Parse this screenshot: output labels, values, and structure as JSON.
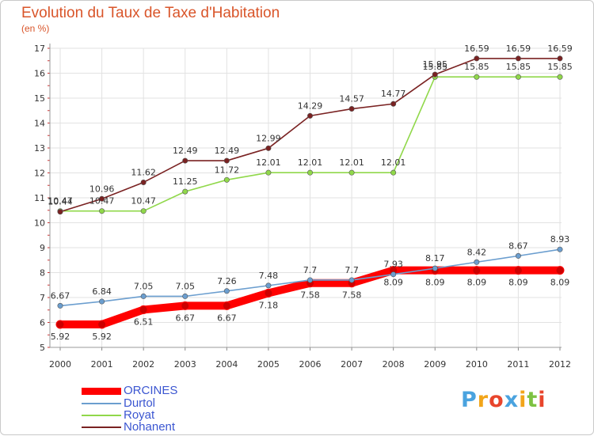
{
  "chart_data": {
    "type": "line",
    "title": "Evolution du Taux de Taxe d'Habitation",
    "ylabel": "(en %)",
    "xlabel": "",
    "x": [
      "2000",
      "2001",
      "2002",
      "2003",
      "2004",
      "2005",
      "2006",
      "2007",
      "2008",
      "2009",
      "2010",
      "2011",
      "2012"
    ],
    "ylim": [
      5,
      17
    ],
    "yticks": [
      "5",
      "6",
      "7",
      "8",
      "9",
      "10",
      "11",
      "12",
      "13",
      "14",
      "15",
      "16",
      "17"
    ],
    "grid": true,
    "legend_position": "bottom-left",
    "series": [
      {
        "name": "ORCINES",
        "color": "#ff0000",
        "values": [
          5.92,
          5.92,
          6.51,
          6.67,
          6.67,
          7.18,
          7.58,
          7.58,
          8.09,
          8.09,
          8.09,
          8.09,
          8.09
        ],
        "labels": [
          "5.92",
          "5.92",
          "6.51",
          "6.67",
          "6.67",
          "7.18",
          "7.58",
          "7.58",
          "8.09",
          "8.09",
          "8.09",
          "8.09",
          "8.09"
        ]
      },
      {
        "name": "Durtol",
        "color": "#6b9ecf",
        "values": [
          6.67,
          6.84,
          7.05,
          7.05,
          7.26,
          7.48,
          7.7,
          7.7,
          7.93,
          8.17,
          8.42,
          8.67,
          8.93
        ],
        "labels": [
          "6.67",
          "6.84",
          "7.05",
          "7.05",
          "7.26",
          "7.48",
          "7.7",
          "7.7",
          "7.93",
          "8.17",
          "8.42",
          "8.67",
          "8.93"
        ]
      },
      {
        "name": "Royat",
        "color": "#90d84a",
        "values": [
          10.47,
          10.47,
          10.47,
          11.25,
          11.72,
          12.01,
          12.01,
          12.01,
          12.01,
          15.85,
          15.85,
          15.85,
          15.85
        ],
        "labels": [
          "10.47",
          "10.47",
          "10.47",
          "11.25",
          "11.72",
          "12.01",
          "12.01",
          "12.01",
          "12.01",
          "15.85",
          "15.85",
          "15.85",
          "15.85"
        ]
      },
      {
        "name": "Nohanent",
        "color": "#7a2222",
        "values": [
          10.44,
          10.96,
          11.62,
          12.49,
          12.49,
          12.99,
          14.29,
          14.57,
          14.77,
          15.95,
          16.59,
          16.59,
          16.59
        ],
        "labels": [
          "10.44",
          "10.96",
          "11.62",
          "12.49",
          "12.49",
          "12.99",
          "14.29",
          "14.57",
          "14.77",
          "15.95",
          "16.59",
          "16.59",
          "16.59"
        ]
      }
    ]
  },
  "brand": {
    "letters": [
      "P",
      "r",
      "o",
      "x",
      "i",
      "t",
      "i"
    ],
    "colors": [
      "#4aa3df",
      "#f2a51a",
      "#e8452c",
      "#4aa3df",
      "#f2a51a",
      "#7dc242",
      "#e8452c"
    ]
  }
}
